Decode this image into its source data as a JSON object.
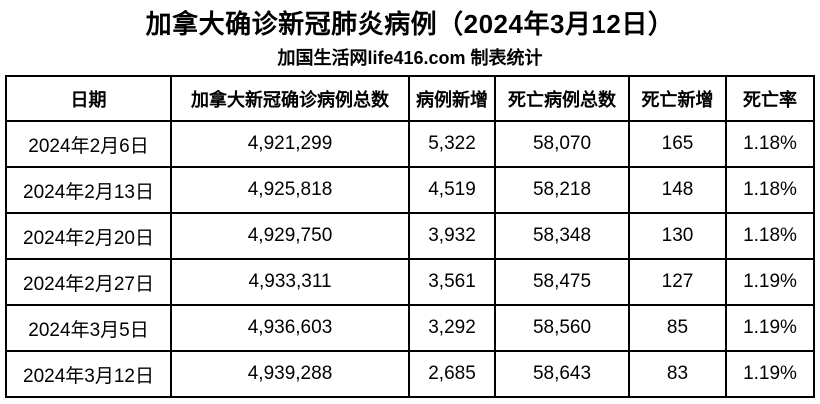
{
  "page": {
    "title": "加拿大确诊新冠肺炎病例（2024年3月12日）",
    "subtitle": "加国生活网life416.com 制表统计"
  },
  "colors": {
    "text": "#000000",
    "background": "#ffffff",
    "border": "#000000"
  },
  "chart_data": {
    "type": "table",
    "title": "加拿大确诊新冠肺炎病例（2024年3月12日）",
    "subtitle": "加国生活网life416.com 制表统计",
    "columns": [
      "日期",
      "加拿大新冠确诊病例总数",
      "病例新增",
      "死亡病例总数",
      "死亡新增",
      "死亡率"
    ],
    "column_names": [
      "date",
      "total-cases",
      "new-cases",
      "total-deaths",
      "new-deaths",
      "death-rate"
    ],
    "rows": [
      [
        "2024年2月6日",
        "4,921,299",
        "5,322",
        "58,070",
        "165",
        "1.18%"
      ],
      [
        "2024年2月13日",
        "4,925,818",
        "4,519",
        "58,218",
        "148",
        "1.18%"
      ],
      [
        "2024年2月20日",
        "4,929,750",
        "3,932",
        "58,348",
        "130",
        "1.18%"
      ],
      [
        "2024年2月27日",
        "4,933,311",
        "3,561",
        "58,475",
        "127",
        "1.19%"
      ],
      [
        "2024年3月5日",
        "4,936,603",
        "3,292",
        "58,560",
        "85",
        "1.19%"
      ],
      [
        "2024年3月12日",
        "4,939,288",
        "2,685",
        "58,643",
        "83",
        "1.19%"
      ]
    ]
  }
}
